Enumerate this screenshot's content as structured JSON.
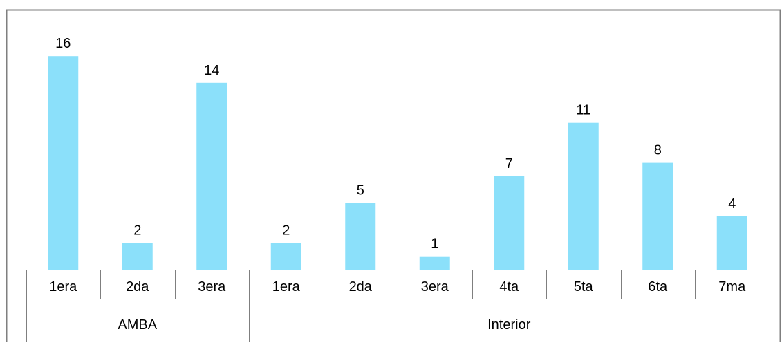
{
  "chart_data": {
    "type": "bar",
    "title": "",
    "xlabel": "",
    "ylabel": "",
    "ylim": [
      0,
      16
    ],
    "grid": false,
    "legend": "none",
    "bar_color": "#8BE0FA",
    "frame_color": "#7F7F7F",
    "groups": [
      {
        "name": "AMBA",
        "categories": [
          "1era",
          "2da",
          "3era"
        ]
      },
      {
        "name": "Interior",
        "categories": [
          "1era",
          "2da",
          "3era",
          "4ta",
          "5ta",
          "6ta",
          "7ma"
        ]
      }
    ],
    "categories": [
      "1era",
      "2da",
      "3era",
      "1era",
      "2da",
      "3era",
      "4ta",
      "5ta",
      "6ta",
      "7ma"
    ],
    "values": [
      16,
      2,
      14,
      2,
      5,
      1,
      7,
      11,
      8,
      4
    ]
  }
}
